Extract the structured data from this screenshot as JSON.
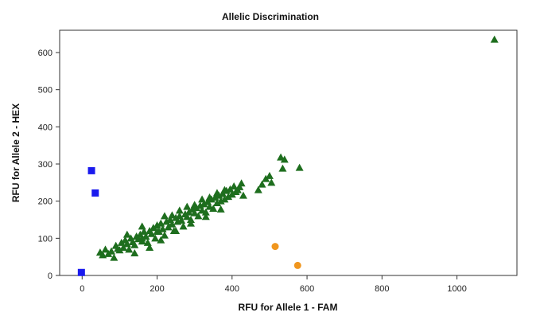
{
  "chart_data": {
    "type": "scatter",
    "title": "Allelic Discrimination",
    "xlabel": "RFU for Allele 1 - FAM",
    "ylabel": "RFU for Allele 2 - HEX",
    "xlim": [
      -60,
      1160
    ],
    "ylim": [
      0,
      660
    ],
    "x_ticks": [
      0,
      200,
      400,
      600,
      800,
      1000
    ],
    "y_ticks": [
      0,
      100,
      200,
      300,
      400,
      500,
      600
    ],
    "grid": false,
    "legend": "none",
    "series": [
      {
        "marker": "square",
        "color": "#1a1aee",
        "points": [
          [
            -2,
            8
          ],
          [
            25,
            282
          ],
          [
            35,
            222
          ]
        ]
      },
      {
        "marker": "circle",
        "color": "#f0961e",
        "points": [
          [
            515,
            78
          ],
          [
            575,
            27
          ]
        ]
      },
      {
        "marker": "triangle",
        "color": "#1e6e1e",
        "points": [
          [
            48,
            62
          ],
          [
            55,
            55
          ],
          [
            62,
            70
          ],
          [
            70,
            58
          ],
          [
            78,
            65
          ],
          [
            85,
            48
          ],
          [
            90,
            80
          ],
          [
            95,
            72
          ],
          [
            100,
            68
          ],
          [
            105,
            88
          ],
          [
            110,
            75
          ],
          [
            115,
            95
          ],
          [
            120,
            85
          ],
          [
            125,
            70
          ],
          [
            130,
            100
          ],
          [
            135,
            90
          ],
          [
            140,
            82
          ],
          [
            145,
            105
          ],
          [
            150,
            98
          ],
          [
            155,
            110
          ],
          [
            160,
            92
          ],
          [
            165,
            118
          ],
          [
            170,
            105
          ],
          [
            175,
            88
          ],
          [
            180,
            120
          ],
          [
            185,
            112
          ],
          [
            190,
            128
          ],
          [
            195,
            100
          ],
          [
            200,
            135
          ],
          [
            205,
            118
          ],
          [
            210,
            140
          ],
          [
            215,
            125
          ],
          [
            220,
            108
          ],
          [
            225,
            145
          ],
          [
            230,
            130
          ],
          [
            235,
            150
          ],
          [
            240,
            138
          ],
          [
            245,
            120
          ],
          [
            250,
            155
          ],
          [
            255,
            145
          ],
          [
            260,
            160
          ],
          [
            265,
            148
          ],
          [
            270,
            132
          ],
          [
            275,
            165
          ],
          [
            280,
            158
          ],
          [
            285,
            170
          ],
          [
            290,
            150
          ],
          [
            295,
            178
          ],
          [
            300,
            168
          ],
          [
            305,
            182
          ],
          [
            310,
            160
          ],
          [
            315,
            188
          ],
          [
            320,
            175
          ],
          [
            325,
            192
          ],
          [
            330,
            170
          ],
          [
            335,
            198
          ],
          [
            340,
            185
          ],
          [
            345,
            205
          ],
          [
            350,
            180
          ],
          [
            355,
            210
          ],
          [
            360,
            195
          ],
          [
            365,
            215
          ],
          [
            370,
            200
          ],
          [
            375,
            220
          ],
          [
            380,
            205
          ],
          [
            385,
            228
          ],
          [
            390,
            212
          ],
          [
            395,
            232
          ],
          [
            400,
            218
          ],
          [
            405,
            240
          ],
          [
            410,
            225
          ],
          [
            415,
            230
          ],
          [
            420,
            238
          ],
          [
            425,
            248
          ],
          [
            430,
            215
          ],
          [
            120,
            110
          ],
          [
            160,
            132
          ],
          [
            200,
            118
          ],
          [
            240,
            162
          ],
          [
            260,
            175
          ],
          [
            300,
            190
          ],
          [
            340,
            210
          ],
          [
            380,
            230
          ],
          [
            140,
            60
          ],
          [
            180,
            75
          ],
          [
            210,
            95
          ],
          [
            250,
            120
          ],
          [
            290,
            140
          ],
          [
            330,
            158
          ],
          [
            370,
            178
          ],
          [
            160,
            100
          ],
          [
            220,
            160
          ],
          [
            280,
            185
          ],
          [
            320,
            205
          ],
          [
            360,
            222
          ],
          [
            480,
            245
          ],
          [
            490,
            260
          ],
          [
            470,
            230
          ],
          [
            500,
            268
          ],
          [
            505,
            250
          ],
          [
            530,
            318
          ],
          [
            540,
            312
          ],
          [
            535,
            288
          ],
          [
            580,
            290
          ],
          [
            1100,
            635
          ]
        ]
      }
    ]
  }
}
